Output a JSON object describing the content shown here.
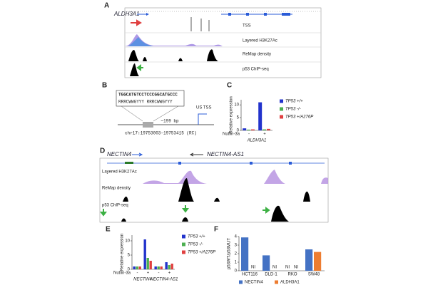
{
  "panel_labels": [
    "A",
    "B",
    "C",
    "D",
    "E",
    "F"
  ],
  "panel_a": {
    "gene": "ALDH3A1",
    "tracks": [
      "TSS",
      "Layered H3K27Ac",
      "ReMap density",
      "p53 ChIP-seq"
    ]
  },
  "panel_b": {
    "motif": "TGGCATGTCCTCCCGGCATGCCC",
    "consensus": "RRRCWWGYYY RRRCWWGYYY",
    "distance": "~199 bp",
    "tss": "US TSS",
    "coords": "chr17:19753003-19753415 (RC)"
  },
  "panel_d": {
    "genes": [
      "NECTIN4",
      "NECTIN4-AS1"
    ],
    "tracks": [
      "Layered H3K27Ac",
      "ReMap density",
      "p53 ChIP-seq"
    ]
  },
  "chart_data": [
    {
      "type": "bar",
      "y_label": "Relative expression",
      "x_label": "Nutlin-3a",
      "groups": [
        "ALDH3A1"
      ],
      "categories": [
        "-",
        "+"
      ],
      "ylim": [
        0,
        12
      ],
      "yticks": [
        0,
        5,
        10
      ],
      "legend": "right",
      "series": [
        {
          "name": "TP53 +/+",
          "color": "#2233cc",
          "values": [
            0.8,
            11
          ]
        },
        {
          "name": "TP53 -/-",
          "color": "#4caf50",
          "values": [
            0.3,
            0.4
          ]
        },
        {
          "name": "TP53 +/A276P",
          "color": "#e04040",
          "values": [
            0.4,
            0.6
          ]
        }
      ]
    },
    {
      "type": "bar",
      "y_label": "Relative expression",
      "x_label": "Nutlin-3a",
      "groups": [
        "NECTIN4",
        "NECTIN4-AS1"
      ],
      "categories": [
        "-",
        "+",
        "-",
        "+"
      ],
      "ylim": [
        0,
        12
      ],
      "yticks": [
        0,
        5,
        10
      ],
      "legend": "right",
      "series": [
        {
          "name": "TP53 +/+",
          "color": "#2233cc",
          "values": [
            1,
            10.5,
            1,
            2.5
          ]
        },
        {
          "name": "TP53 -/-",
          "color": "#4caf50",
          "values": [
            1,
            4,
            1,
            1.5
          ]
        },
        {
          "name": "TP53 +/A276P",
          "color": "#e04040",
          "values": [
            1,
            3,
            1,
            2
          ]
        }
      ]
    },
    {
      "type": "bar",
      "y_label": "p53WT/p53MUT",
      "categories": [
        "HCT116",
        "DLD-1",
        "RKO",
        "SW48"
      ],
      "ylim": [
        0,
        4
      ],
      "yticks": [
        0,
        1,
        2,
        3,
        4
      ],
      "legend": "bottom",
      "series": [
        {
          "name": "NECTIN4",
          "color": "#4472c4",
          "values": [
            3.9,
            1.8,
            null,
            2.5
          ],
          "value_labels": [
            null,
            null,
            "NI",
            null
          ]
        },
        {
          "name": "ALDH3A1",
          "color": "#ed7d31",
          "values": [
            null,
            null,
            null,
            2.2
          ],
          "value_labels": [
            "NI",
            "NI",
            "NI",
            null
          ]
        }
      ]
    }
  ]
}
